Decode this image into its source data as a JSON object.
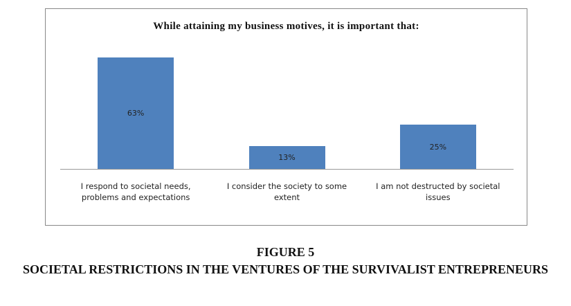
{
  "chart_data": {
    "type": "bar",
    "title": "While attaining my business motives, it is important that:",
    "categories": [
      "I respond to societal needs, problems and expectations",
      "I consider the society to some extent",
      "I am not destructed by societal issues"
    ],
    "values": [
      63,
      13,
      25
    ],
    "value_labels": [
      "63%",
      "13%",
      "25%"
    ],
    "color": "#4f81bd"
  },
  "caption": {
    "label": "FIGURE 5",
    "text": "SOCIETAL RESTRICTIONS IN THE VENTURES OF THE SURVIVALIST ENTREPRENEURS"
  }
}
